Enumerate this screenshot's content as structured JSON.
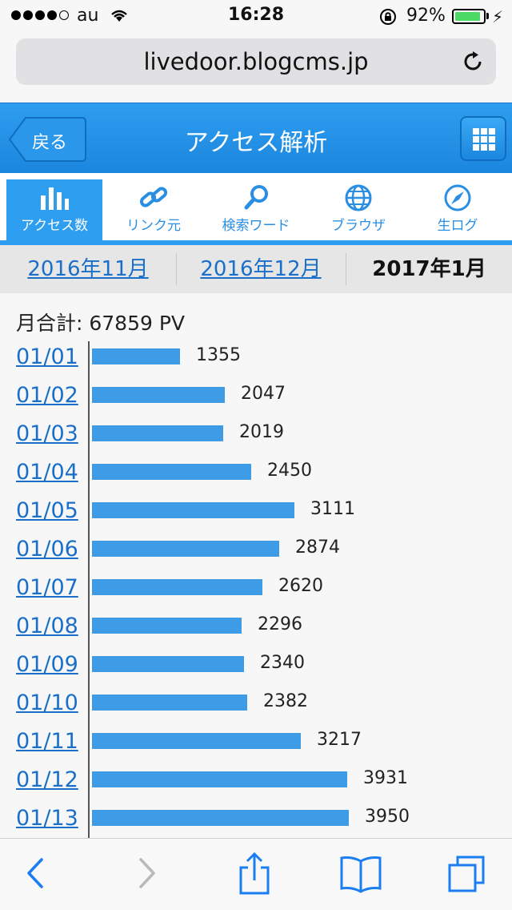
{
  "status": {
    "carrier": "au",
    "time": "16:28",
    "battery": "92%",
    "signal_bars": 4,
    "icons": [
      "wifi-icon",
      "rotation-lock-icon",
      "battery-icon",
      "charging-bolt-icon"
    ]
  },
  "browser": {
    "url": "livedoor.blogcms.jp",
    "reload_icon": "reload-icon"
  },
  "header": {
    "back_label": "戻る",
    "title": "アクセス解析",
    "menu_icon": "grid-menu-icon"
  },
  "tabs": [
    {
      "label": "アクセス数",
      "icon": "bar-chart-icon",
      "active": true
    },
    {
      "label": "リンク元",
      "icon": "link-icon",
      "active": false
    },
    {
      "label": "検索ワード",
      "icon": "search-icon",
      "active": false
    },
    {
      "label": "ブラウザ",
      "icon": "globe-icon",
      "active": false
    },
    {
      "label": "生ログ",
      "icon": "compass-icon",
      "active": false
    }
  ],
  "months": {
    "prev2": "2016年11月",
    "prev1": "2016年12月",
    "current": "2017年1月"
  },
  "summary": {
    "total": "月合計: 67859 PV"
  },
  "colors": {
    "accent": "#2e9ef0",
    "bar": "#3e9ce6",
    "link": "#1a6fc9"
  },
  "chart_data": {
    "type": "bar",
    "orientation": "horizontal",
    "categories": [
      "01/01",
      "01/02",
      "01/03",
      "01/04",
      "01/05",
      "01/06",
      "01/07",
      "01/08",
      "01/09",
      "01/10",
      "01/11",
      "01/12",
      "01/13"
    ],
    "values": [
      1355,
      2047,
      2019,
      2450,
      3111,
      2874,
      2620,
      2296,
      2340,
      2382,
      3217,
      3931,
      3950
    ],
    "title": "",
    "xlabel": "",
    "ylabel": "",
    "data_labels": true
  },
  "toolbar": {
    "icons": [
      "back-arrow-icon",
      "forward-arrow-icon",
      "share-icon",
      "bookmarks-icon",
      "tabs-icon"
    ]
  }
}
